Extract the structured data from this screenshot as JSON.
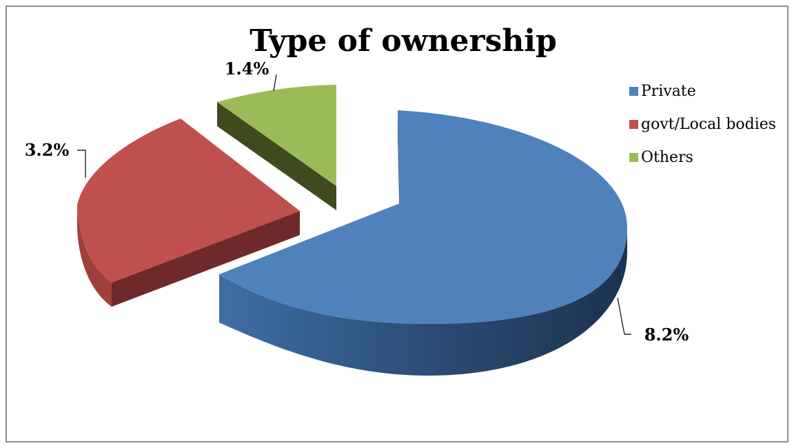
{
  "chart_data": {
    "type": "pie",
    "title": "Type of ownership",
    "categories": [
      "Private",
      "govt/Local bodies",
      "Others"
    ],
    "values": [
      8.2,
      3.2,
      1.4
    ],
    "data_labels": [
      "8.2%",
      "3.2%",
      "1.4%"
    ],
    "colors": [
      "#4F81BD",
      "#C0504D",
      "#9BBB59"
    ],
    "style": "3d-exploded",
    "legend_position": "right"
  }
}
